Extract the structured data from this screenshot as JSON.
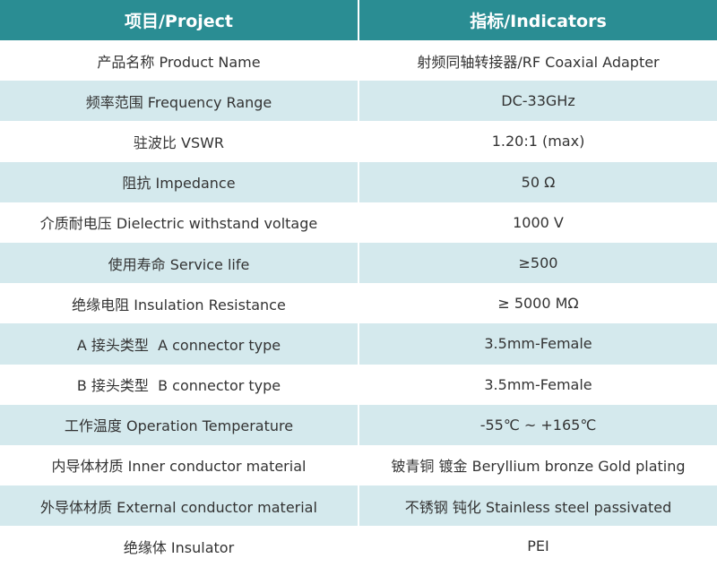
{
  "table": {
    "header": [
      "项目/Project",
      "指标/Indicators"
    ],
    "rows": [
      [
        "产品名称 Product Name",
        "射频同轴转接器/RF Coaxial Adapter"
      ],
      [
        "频率范围 Frequency Range",
        "DC-33GHz"
      ],
      [
        "驻波比 VSWR",
        "1.20:1 (max)"
      ],
      [
        "阻抗 Impedance",
        "50 Ω"
      ],
      [
        "介质耐电压 Dielectric withstand voltage",
        "1000 V"
      ],
      [
        "使用寿命 Service life",
        "≥500"
      ],
      [
        "绝缘电阻 Insulation Resistance",
        "≥ 5000 MΩ"
      ],
      [
        "A 接头类型  A connector type",
        "3.5mm-Female"
      ],
      [
        "B 接头类型  B connector type",
        "3.5mm-Female"
      ],
      [
        "工作温度 Operation Temperature",
        "-55℃ ~ +165℃"
      ],
      [
        "内导体材质 Inner conductor material",
        "铍青铜 镀金 Beryllium bronze Gold plating"
      ],
      [
        "外导体材质 External conductor material",
        "不锈钢 钝化 Stainless steel passivated"
      ],
      [
        "绝缘体 Insulator",
        "PEI"
      ]
    ]
  }
}
